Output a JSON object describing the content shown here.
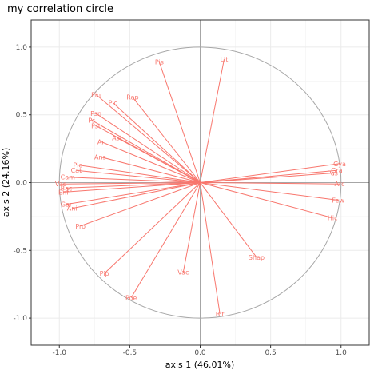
{
  "chart_data": {
    "type": "scatter",
    "title": "my correlation circle",
    "xlabel": "axis 1 (46.01%)",
    "ylabel": "axis 2 (24.16%)",
    "xlim": [
      -1.2,
      1.2
    ],
    "ylim": [
      -1.2,
      1.2
    ],
    "x_ticks": [
      -1.0,
      -0.5,
      0.0,
      0.5,
      1.0
    ],
    "y_ticks": [
      -1.0,
      -0.5,
      0.0,
      0.5,
      1.0
    ],
    "x_tick_labels": [
      "-1.0",
      "-0.5",
      "0.0",
      "0.5",
      "1.0"
    ],
    "y_tick_labels": [
      "-1.0",
      "-0.5",
      "0.0",
      "0.5",
      "1.0"
    ],
    "grid": true,
    "unit_circle": true,
    "arrow_color": "#f8766d",
    "circle_color": "#a6a6a6",
    "variables": [
      {
        "name": "Pis",
        "x": -0.29,
        "y": 0.89
      },
      {
        "name": "Lit",
        "x": 0.17,
        "y": 0.91
      },
      {
        "name": "Pin",
        "x": -0.74,
        "y": 0.65
      },
      {
        "name": "Pic",
        "x": -0.62,
        "y": 0.59
      },
      {
        "name": "Rap",
        "x": -0.48,
        "y": 0.63
      },
      {
        "name": "Psn",
        "x": -0.74,
        "y": 0.51
      },
      {
        "name": "Ps",
        "x": -0.77,
        "y": 0.46
      },
      {
        "name": "Pst",
        "x": -0.74,
        "y": 0.42
      },
      {
        "name": "Ast",
        "x": -0.59,
        "y": 0.33
      },
      {
        "name": "An",
        "x": -0.7,
        "y": 0.3
      },
      {
        "name": "Ans",
        "x": -0.71,
        "y": 0.19
      },
      {
        "name": "Pic",
        "x": -0.87,
        "y": 0.13
      },
      {
        "name": "Cat",
        "x": -0.88,
        "y": 0.09
      },
      {
        "name": "Cam",
        "x": -0.94,
        "y": 0.04
      },
      {
        "name": "Vac",
        "x": -0.99,
        "y": -0.01
      },
      {
        "name": "Bac",
        "x": -0.95,
        "y": -0.04
      },
      {
        "name": "Enf",
        "x": -0.97,
        "y": -0.07
      },
      {
        "name": "Gar",
        "x": -0.95,
        "y": -0.16
      },
      {
        "name": "Ani",
        "x": -0.91,
        "y": -0.19
      },
      {
        "name": "Pro",
        "x": -0.85,
        "y": -0.32
      },
      {
        "name": "Pip",
        "x": -0.68,
        "y": -0.67
      },
      {
        "name": "Poe",
        "x": -0.49,
        "y": -0.85
      },
      {
        "name": "Vac",
        "x": -0.12,
        "y": -0.66
      },
      {
        "name": "Bit",
        "x": 0.14,
        "y": -0.97
      },
      {
        "name": "Shap",
        "x": 0.4,
        "y": -0.55
      },
      {
        "name": "Gya",
        "x": 0.99,
        "y": 0.14
      },
      {
        "name": "Gra",
        "x": 0.97,
        "y": 0.09
      },
      {
        "name": "Pas",
        "x": 0.94,
        "y": 0.07
      },
      {
        "name": "Arc",
        "x": 0.99,
        "y": -0.01
      },
      {
        "name": "Few",
        "x": 0.98,
        "y": -0.13
      },
      {
        "name": "Hic",
        "x": 0.94,
        "y": -0.26
      }
    ]
  }
}
